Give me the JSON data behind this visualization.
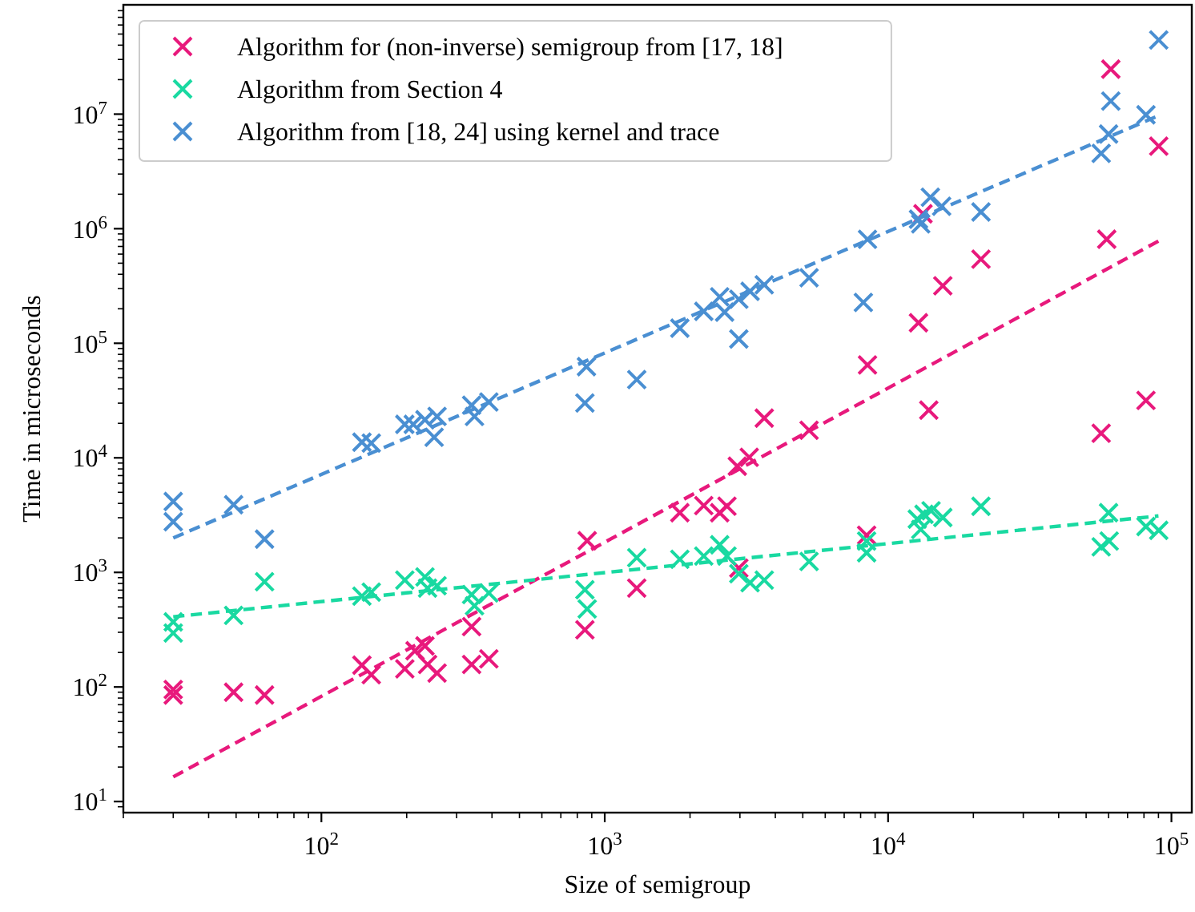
{
  "chart_data": {
    "type": "scatter",
    "xlabel": "Size of semigroup",
    "ylabel": "Time in microseconds",
    "log": "xy",
    "marker": "cross",
    "legend": "top left",
    "xlim": [
      20,
      118000
    ],
    "ylim": [
      8,
      90000000
    ],
    "xticks": [
      {
        "value": 100,
        "label": "10$^{2}$"
      },
      {
        "value": 1000,
        "label": "10$^{3}$"
      },
      {
        "value": 10000,
        "label": "10$^{4}$"
      },
      {
        "value": 100000,
        "label": "10$^{5}$"
      },
      {
        "value": 20,
        "label": null
      },
      {
        "value": 30,
        "label": null
      },
      {
        "value": 40,
        "label": null
      },
      {
        "value": 50,
        "label": null
      },
      {
        "value": 60,
        "label": null
      },
      {
        "value": 70,
        "label": null
      },
      {
        "value": 80,
        "label": null
      },
      {
        "value": 90,
        "label": null
      },
      {
        "value": 200,
        "label": null
      },
      {
        "value": 300,
        "label": null
      },
      {
        "value": 400,
        "label": null
      },
      {
        "value": 500,
        "label": null
      },
      {
        "value": 600,
        "label": null
      },
      {
        "value": 700,
        "label": null
      },
      {
        "value": 800,
        "label": null
      },
      {
        "value": 900,
        "label": null
      },
      {
        "value": 2000,
        "label": null
      },
      {
        "value": 3000,
        "label": null
      },
      {
        "value": 4000,
        "label": null
      },
      {
        "value": 5000,
        "label": null
      },
      {
        "value": 6000,
        "label": null
      },
      {
        "value": 7000,
        "label": null
      },
      {
        "value": 8000,
        "label": null
      },
      {
        "value": 9000,
        "label": null
      },
      {
        "value": 20000,
        "label": null
      },
      {
        "value": 30000,
        "label": null
      },
      {
        "value": 40000,
        "label": null
      },
      {
        "value": 50000,
        "label": null
      },
      {
        "value": 60000,
        "label": null
      },
      {
        "value": 70000,
        "label": null
      },
      {
        "value": 80000,
        "label": null
      },
      {
        "value": 90000,
        "label": null
      }
    ],
    "yticks": [
      {
        "value": 10,
        "label": "10$^{1}$"
      },
      {
        "value": 100,
        "label": "10$^{2}$"
      },
      {
        "value": 1000,
        "label": "10$^{3}$"
      },
      {
        "value": 10000,
        "label": "10$^{4}$"
      },
      {
        "value": 100000,
        "label": "10$^{5}$"
      },
      {
        "value": 1000000,
        "label": "10$^{6}$"
      },
      {
        "value": 10000000,
        "label": "10$^{7}$"
      },
      {
        "value": 9,
        "label": null
      },
      {
        "value": 20,
        "label": null
      },
      {
        "value": 30,
        "label": null
      },
      {
        "value": 40,
        "label": null
      },
      {
        "value": 50,
        "label": null
      },
      {
        "value": 60,
        "label": null
      },
      {
        "value": 70,
        "label": null
      },
      {
        "value": 80,
        "label": null
      },
      {
        "value": 90,
        "label": null
      },
      {
        "value": 200,
        "label": null
      },
      {
        "value": 300,
        "label": null
      },
      {
        "value": 400,
        "label": null
      },
      {
        "value": 500,
        "label": null
      },
      {
        "value": 600,
        "label": null
      },
      {
        "value": 700,
        "label": null
      },
      {
        "value": 800,
        "label": null
      },
      {
        "value": 900,
        "label": null
      },
      {
        "value": 2000,
        "label": null
      },
      {
        "value": 3000,
        "label": null
      },
      {
        "value": 4000,
        "label": null
      },
      {
        "value": 5000,
        "label": null
      },
      {
        "value": 6000,
        "label": null
      },
      {
        "value": 7000,
        "label": null
      },
      {
        "value": 8000,
        "label": null
      },
      {
        "value": 9000,
        "label": null
      },
      {
        "value": 20000,
        "label": null
      },
      {
        "value": 30000,
        "label": null
      },
      {
        "value": 40000,
        "label": null
      },
      {
        "value": 50000,
        "label": null
      },
      {
        "value": 60000,
        "label": null
      },
      {
        "value": 70000,
        "label": null
      },
      {
        "value": 80000,
        "label": null
      },
      {
        "value": 90000,
        "label": null
      },
      {
        "value": 200000,
        "label": null
      },
      {
        "value": 300000,
        "label": null
      },
      {
        "value": 400000,
        "label": null
      },
      {
        "value": 500000,
        "label": null
      },
      {
        "value": 600000,
        "label": null
      },
      {
        "value": 700000,
        "label": null
      },
      {
        "value": 800000,
        "label": null
      },
      {
        "value": 900000,
        "label": null
      },
      {
        "value": 2000000,
        "label": null
      },
      {
        "value": 3000000,
        "label": null
      },
      {
        "value": 4000000,
        "label": null
      },
      {
        "value": 5000000,
        "label": null
      },
      {
        "value": 6000000,
        "label": null
      },
      {
        "value": 7000000,
        "label": null
      },
      {
        "value": 8000000,
        "label": null
      },
      {
        "value": 9000000,
        "label": null
      },
      {
        "value": 20000000,
        "label": null
      },
      {
        "value": 30000000,
        "label": null
      },
      {
        "value": 40000000,
        "label": null
      },
      {
        "value": 50000000,
        "label": null
      },
      {
        "value": 60000000,
        "label": null
      },
      {
        "value": 70000000,
        "label": null
      },
      {
        "value": 80000000,
        "label": null
      }
    ],
    "series": [
      {
        "name": "Algorithm for (non-inverse) semigroup from [17, 18]",
        "color": "#e8197c",
        "x": [
          30,
          30,
          49,
          63,
          139,
          150,
          197,
          214,
          232,
          237,
          256,
          339,
          339,
          390,
          851,
          867,
          1297,
          1841,
          2236,
          2545,
          2700,
          2937,
          3236,
          3656,
          2973,
          5262,
          8460,
          8400,
          12800,
          13280,
          13920,
          15600,
          21270,
          56500,
          59100,
          61100,
          81300,
          90200
        ],
        "values": [
          95,
          85,
          90,
          85,
          155,
          128,
          144,
          207,
          228,
          157,
          132,
          336,
          157,
          176,
          315,
          1890,
          729,
          3320,
          3830,
          3320,
          3780,
          8450,
          10100,
          22200,
          1090,
          17400,
          64600,
          2110,
          151000,
          1350000,
          26100,
          317000,
          542000,
          16400,
          809000,
          24700000,
          31700,
          5260000
        ]
      },
      {
        "name": "Algorithm from Section 4",
        "color": "#19d9a1",
        "x": [
          30,
          30,
          49,
          63,
          139,
          150,
          197,
          232,
          237,
          256,
          339,
          347,
          390,
          851,
          867,
          1297,
          1841,
          2236,
          2545,
          2700,
          2973,
          3258,
          3656,
          5262,
          8400,
          8400,
          12680,
          13040,
          13390,
          14180,
          15600,
          21270,
          56500,
          60000,
          60300,
          81300,
          90200
        ],
        "values": [
          370,
          296,
          421,
          829,
          621,
          673,
          857,
          914,
          729,
          765,
          641,
          511,
          662,
          706,
          480,
          1345,
          1303,
          1390,
          1742,
          1390,
          975,
          813,
          857,
          1246,
          1876,
          1483,
          2917,
          2371,
          3214,
          3451,
          3013,
          3776,
          1671,
          3319,
          1876,
          2515,
          2328
        ]
      },
      {
        "name": "Algorithm from [18, 24] using kernel and trace",
        "color": "#4a8fd2",
        "x": [
          30,
          30,
          49,
          63,
          139,
          150,
          197,
          211,
          232,
          256,
          250,
          339,
          347,
          390,
          862,
          851,
          1297,
          1841,
          2236,
          2545,
          2648,
          2973,
          2973,
          3258,
          3656,
          5262,
          8460,
          8180,
          12800,
          13040,
          14100,
          15450,
          21270,
          56500,
          60000,
          61100,
          81300,
          90200
        ],
        "values": [
          4160,
          2770,
          3900,
          1950,
          13700,
          13450,
          19600,
          19600,
          21500,
          23000,
          15100,
          28800,
          23000,
          30700,
          62500,
          30100,
          48200,
          135500,
          190000,
          254000,
          187000,
          242000,
          109000,
          284000,
          324000,
          373000,
          808000,
          227000,
          1210000,
          1100000,
          1880000,
          1570000,
          1400000,
          4550000,
          6700000,
          13000000,
          9870000,
          44400000
        ]
      },
      {
        "type": "line",
        "color": "#e8197c",
        "marker": "none",
        "line_style": "dashed",
        "x": [
          30,
          90000
        ],
        "values": [
          16.4,
          780000
        ]
      },
      {
        "type": "line",
        "color": "#19d9a1",
        "marker": "none",
        "line_style": "dashed",
        "x": [
          30,
          90000
        ],
        "values": [
          410,
          3110
        ]
      },
      {
        "type": "line",
        "color": "#4a8fd2",
        "marker": "none",
        "line_style": "dashed",
        "x": [
          30,
          90000
        ],
        "values": [
          2000,
          9700000
        ]
      }
    ]
  }
}
